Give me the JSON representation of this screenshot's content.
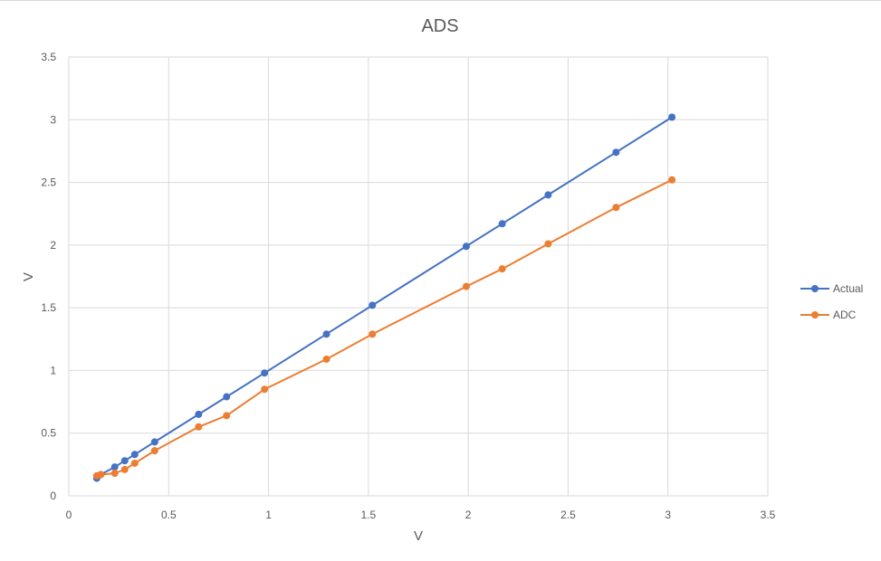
{
  "chart_data": {
    "type": "scatter",
    "title": "ADS",
    "xlabel": "V",
    "ylabel": "V",
    "xlim": [
      0,
      3.5
    ],
    "ylim": [
      0,
      3.5
    ],
    "xticks": [
      "0",
      "0.5",
      "1",
      "1.5",
      "2",
      "2.5",
      "3",
      "3.5"
    ],
    "yticks": [
      "0",
      "0.5",
      "1",
      "1.5",
      "2",
      "2.5",
      "3",
      "3.5"
    ],
    "grid": true,
    "legend_position": "right",
    "series": [
      {
        "name": "Actual",
        "color": "#4472c4",
        "points": [
          [
            0.14,
            0.14
          ],
          [
            0.16,
            0.17
          ],
          [
            0.23,
            0.23
          ],
          [
            0.28,
            0.28
          ],
          [
            0.33,
            0.33
          ],
          [
            0.43,
            0.43
          ],
          [
            0.65,
            0.65
          ],
          [
            0.79,
            0.79
          ],
          [
            0.98,
            0.98
          ],
          [
            1.29,
            1.29
          ],
          [
            1.52,
            1.52
          ],
          [
            1.99,
            1.99
          ],
          [
            2.17,
            2.17
          ],
          [
            2.4,
            2.4
          ],
          [
            2.74,
            2.74
          ],
          [
            3.02,
            3.02
          ]
        ]
      },
      {
        "name": "ADC",
        "color": "#ed7d31",
        "points": [
          [
            0.14,
            0.16
          ],
          [
            0.16,
            0.17
          ],
          [
            0.23,
            0.18
          ],
          [
            0.28,
            0.21
          ],
          [
            0.33,
            0.26
          ],
          [
            0.43,
            0.36
          ],
          [
            0.65,
            0.55
          ],
          [
            0.79,
            0.64
          ],
          [
            0.98,
            0.85
          ],
          [
            1.29,
            1.09
          ],
          [
            1.52,
            1.29
          ],
          [
            1.99,
            1.67
          ],
          [
            2.17,
            1.81
          ],
          [
            2.4,
            2.01
          ],
          [
            2.74,
            2.3
          ],
          [
            3.02,
            2.52
          ]
        ]
      }
    ]
  }
}
